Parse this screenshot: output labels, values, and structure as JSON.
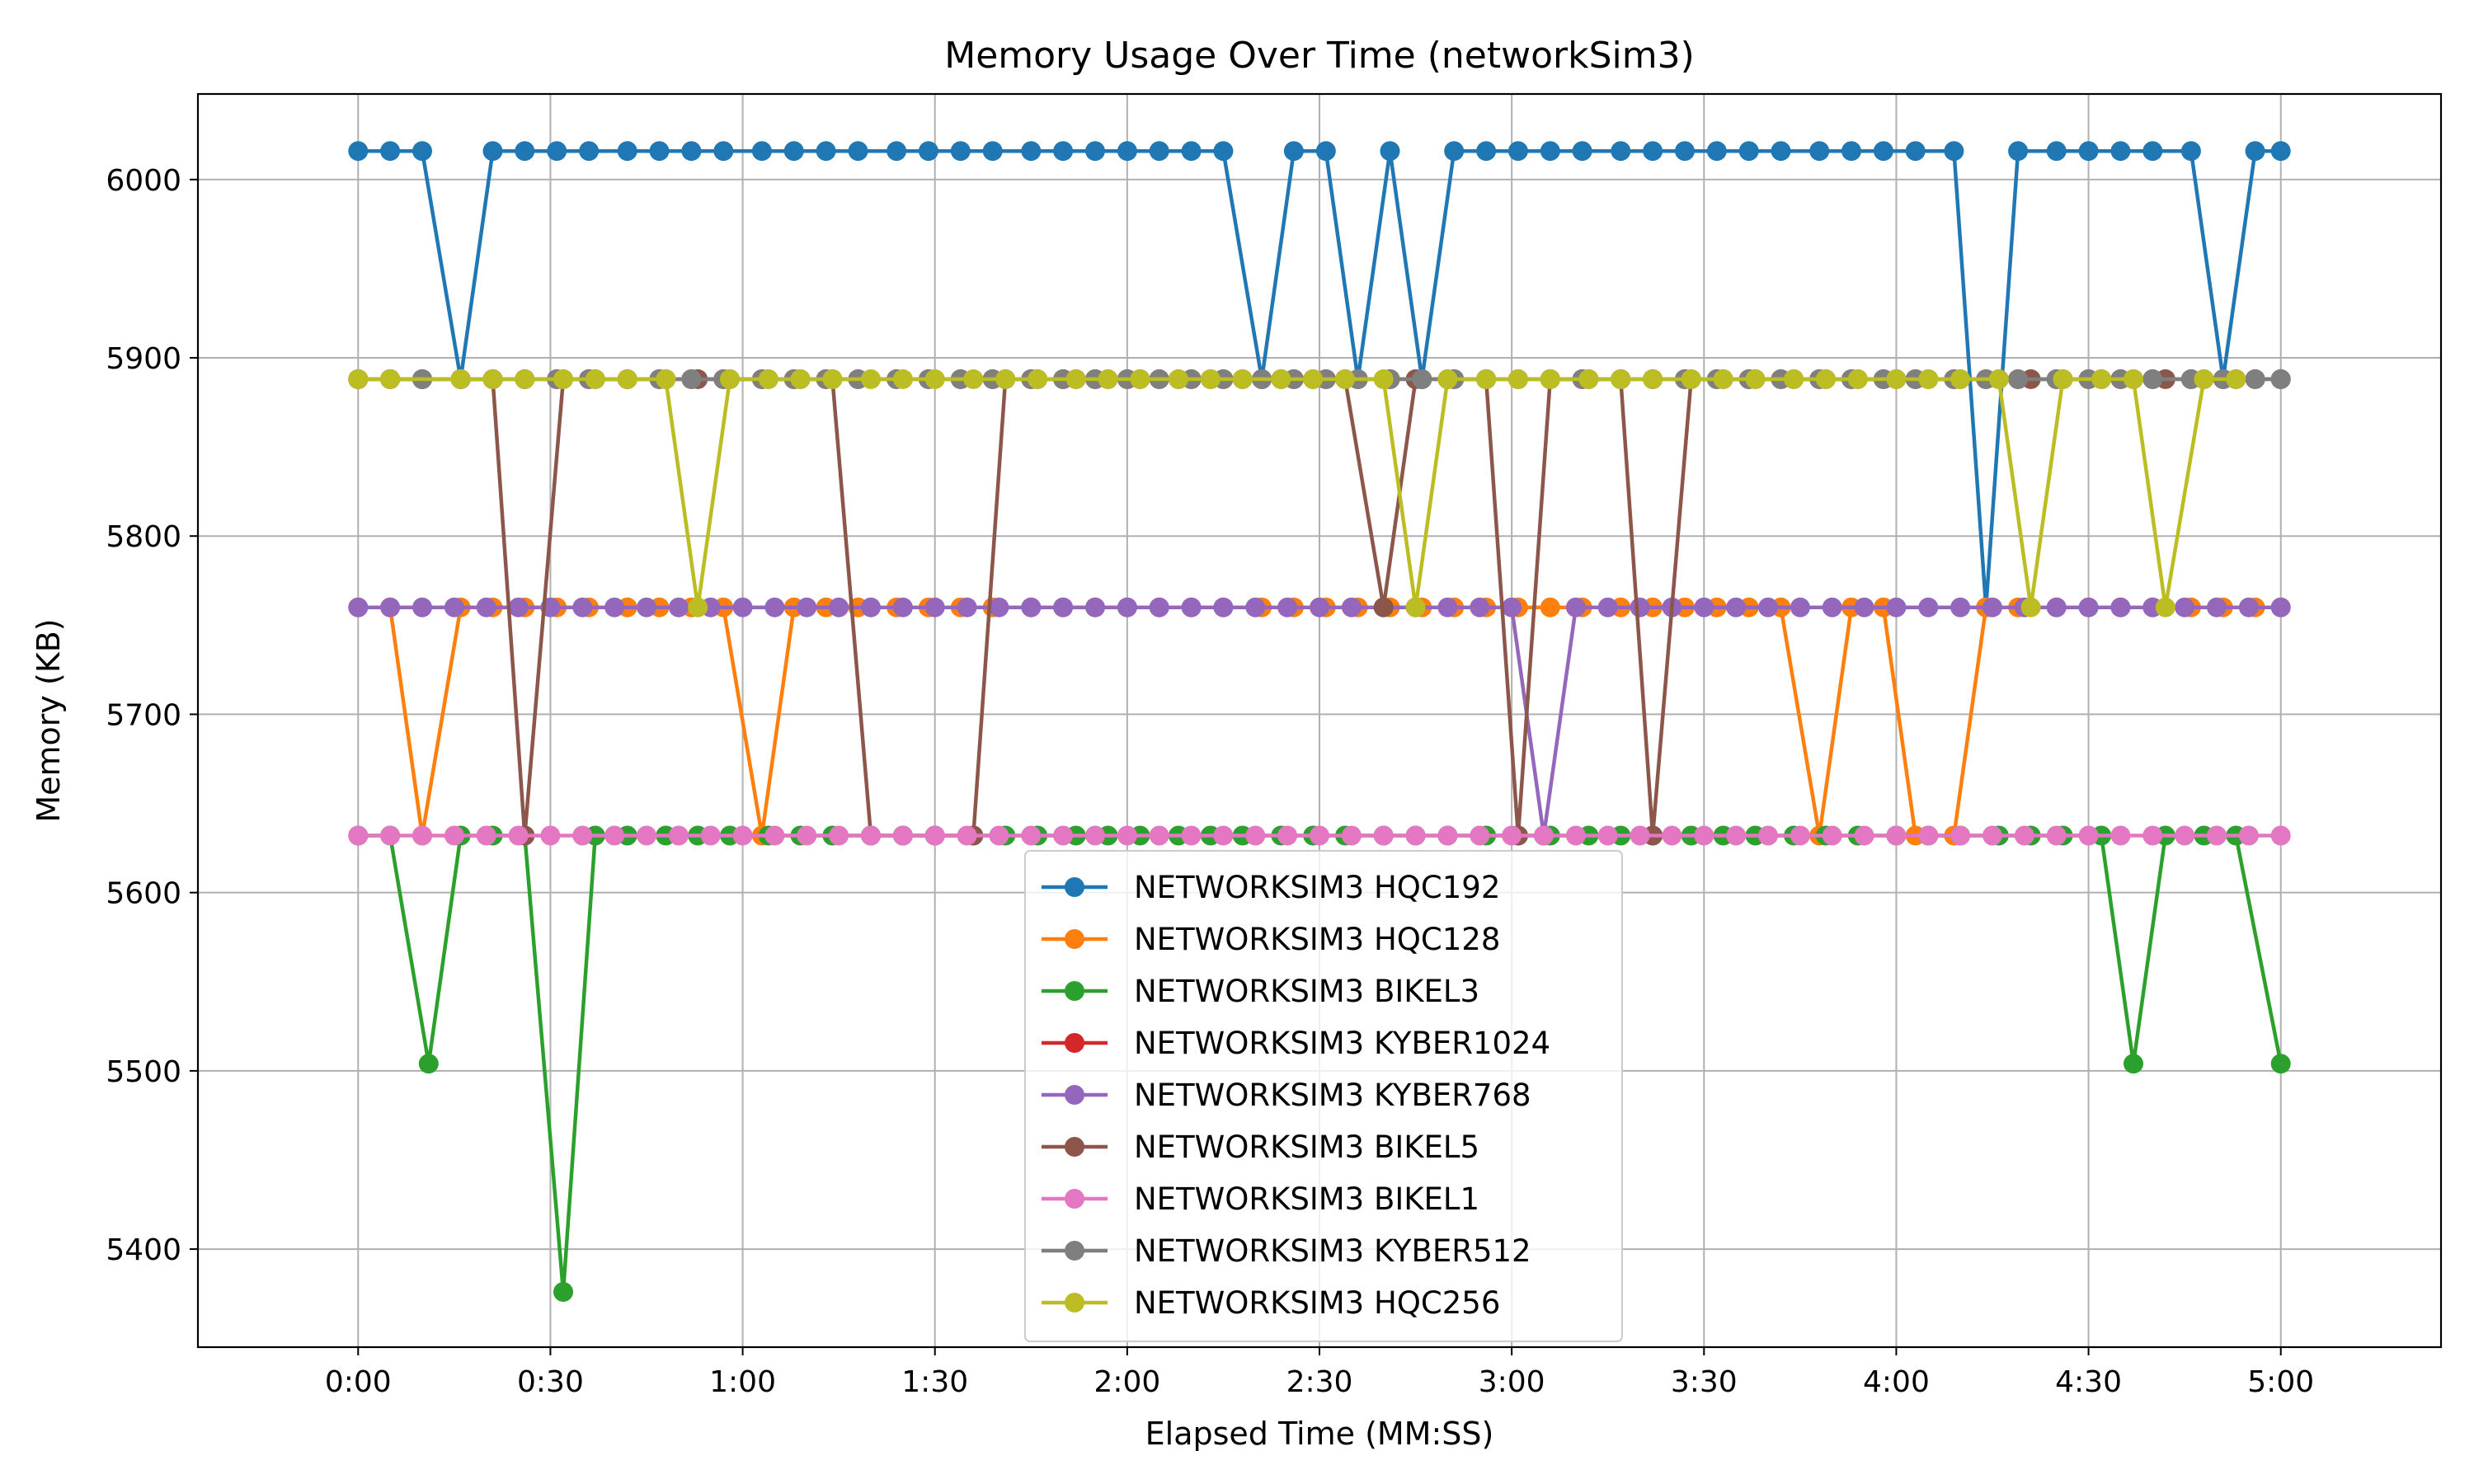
{
  "chart_data": {
    "type": "line",
    "title": "Memory Usage Over Time (networkSim3)",
    "xlabel": "Elapsed Time (MM:SS)",
    "ylabel": "Memory (KB)",
    "xlim": [
      -25,
      325
    ],
    "ylim": [
      5345,
      6048
    ],
    "x_ticks": [
      {
        "value": 0,
        "label": "0:00"
      },
      {
        "value": 30,
        "label": "0:30"
      },
      {
        "value": 60,
        "label": "1:00"
      },
      {
        "value": 90,
        "label": "1:30"
      },
      {
        "value": 120,
        "label": "2:00"
      },
      {
        "value": 150,
        "label": "2:30"
      },
      {
        "value": 180,
        "label": "3:00"
      },
      {
        "value": 210,
        "label": "3:30"
      },
      {
        "value": 240,
        "label": "4:00"
      },
      {
        "value": 270,
        "label": "4:30"
      },
      {
        "value": 300,
        "label": "5:00"
      }
    ],
    "y_ticks": [
      {
        "value": 5400,
        "label": "5400"
      },
      {
        "value": 5500,
        "label": "5500"
      },
      {
        "value": 5600,
        "label": "5600"
      },
      {
        "value": 5700,
        "label": "5700"
      },
      {
        "value": 5800,
        "label": "5800"
      },
      {
        "value": 5900,
        "label": "5900"
      },
      {
        "value": 6000,
        "label": "6000"
      }
    ],
    "grid": true,
    "legend_position": "lower-center",
    "series": [
      {
        "name": "NETWORKSIM3 HQC192",
        "color": "#1f77b4",
        "x": [
          0,
          5,
          10,
          16,
          21,
          26,
          31,
          36,
          42,
          47,
          52,
          57,
          63,
          68,
          73,
          78,
          84,
          89,
          94,
          99,
          105,
          110,
          115,
          120,
          125,
          130,
          135,
          141,
          146,
          151,
          156,
          161,
          166,
          171,
          176,
          181,
          186,
          191,
          197,
          202,
          207,
          212,
          217,
          222,
          228,
          233,
          238,
          243,
          249,
          254,
          259,
          265,
          270,
          275,
          280,
          286,
          291,
          296,
          300
        ],
        "y": [
          6016,
          6016,
          6016,
          5888,
          6016,
          6016,
          6016,
          6016,
          6016,
          6016,
          6016,
          6016,
          6016,
          6016,
          6016,
          6016,
          6016,
          6016,
          6016,
          6016,
          6016,
          6016,
          6016,
          6016,
          6016,
          6016,
          6016,
          5888,
          6016,
          6016,
          5888,
          6016,
          5888,
          6016,
          6016,
          6016,
          6016,
          6016,
          6016,
          6016,
          6016,
          6016,
          6016,
          6016,
          6016,
          6016,
          6016,
          6016,
          6016,
          5760,
          6016,
          6016,
          6016,
          6016,
          6016,
          6016,
          5888,
          6016,
          6016
        ]
      },
      {
        "name": "NETWORKSIM3 HQC128",
        "color": "#ff7f0e",
        "x": [
          0,
          5,
          10,
          16,
          21,
          26,
          31,
          36,
          42,
          47,
          52,
          57,
          63,
          68,
          73,
          78,
          84,
          89,
          94,
          99,
          105,
          110,
          115,
          120,
          125,
          130,
          135,
          141,
          146,
          151,
          156,
          161,
          166,
          171,
          176,
          181,
          186,
          191,
          197,
          202,
          207,
          212,
          217,
          222,
          228,
          233,
          238,
          243,
          249,
          254,
          259,
          265,
          270,
          275,
          280,
          286,
          291,
          296,
          300
        ],
        "y": [
          5760,
          5760,
          5632,
          5760,
          5760,
          5760,
          5760,
          5760,
          5760,
          5760,
          5760,
          5760,
          5632,
          5760,
          5760,
          5760,
          5760,
          5760,
          5760,
          5760,
          5760,
          5760,
          5760,
          5760,
          5760,
          5760,
          5760,
          5760,
          5760,
          5760,
          5760,
          5760,
          5760,
          5760,
          5760,
          5760,
          5760,
          5760,
          5760,
          5760,
          5760,
          5760,
          5760,
          5760,
          5632,
          5760,
          5760,
          5632,
          5632,
          5760,
          5760,
          5760,
          5760,
          5760,
          5760,
          5760,
          5760,
          5760,
          5760
        ]
      },
      {
        "name": "NETWORKSIM3 BIKEL3",
        "color": "#2ca02c",
        "x": [
          0,
          5,
          11,
          16,
          21,
          26,
          32,
          37,
          42,
          48,
          53,
          58,
          64,
          69,
          74,
          80,
          85,
          90,
          96,
          101,
          106,
          112,
          117,
          122,
          128,
          133,
          138,
          144,
          149,
          154,
          160,
          165,
          170,
          176,
          181,
          186,
          192,
          197,
          202,
          208,
          213,
          218,
          224,
          229,
          234,
          240,
          245,
          250,
          256,
          261,
          266,
          272,
          277,
          282,
          288,
          293,
          300
        ],
        "y": [
          5632,
          5632,
          5504,
          5632,
          5632,
          5632,
          5376,
          5632,
          5632,
          5632,
          5632,
          5632,
          5632,
          5632,
          5632,
          5632,
          5632,
          5632,
          5632,
          5632,
          5632,
          5632,
          5632,
          5632,
          5632,
          5632,
          5632,
          5632,
          5632,
          5632,
          5632,
          5632,
          5632,
          5632,
          5632,
          5632,
          5632,
          5632,
          5632,
          5632,
          5632,
          5632,
          5632,
          5632,
          5632,
          5632,
          5632,
          5632,
          5632,
          5632,
          5632,
          5632,
          5504,
          5632,
          5632,
          5632,
          5504
        ]
      },
      {
        "name": "NETWORKSIM3 KYBER1024",
        "color": "#d62728",
        "x": [
          0,
          5,
          10,
          16,
          21,
          26,
          31,
          36,
          42,
          47,
          52,
          57,
          63,
          68,
          73,
          78,
          84,
          89,
          94,
          99,
          105,
          110,
          115,
          120,
          125,
          130,
          135,
          141,
          146,
          151,
          156,
          161,
          166,
          171,
          176,
          181,
          186,
          191,
          197,
          202,
          207,
          212,
          217,
          222,
          228,
          233,
          238,
          243,
          249,
          254,
          259,
          265,
          270,
          275,
          280,
          286,
          291,
          296,
          300
        ],
        "y": [
          5888,
          5888,
          5888,
          5888,
          5888,
          5888,
          5888,
          5888,
          5888,
          5888,
          5888,
          5888,
          5888,
          5888,
          5888,
          5888,
          5888,
          5888,
          5888,
          5888,
          5888,
          5888,
          5888,
          5888,
          5888,
          5888,
          5888,
          5888,
          5888,
          5888,
          5888,
          5888,
          5888,
          5888,
          5888,
          5888,
          5888,
          5888,
          5888,
          5888,
          5888,
          5888,
          5888,
          5888,
          5888,
          5888,
          5888,
          5888,
          5888,
          5888,
          5888,
          5888,
          5888,
          5888,
          5888,
          5888,
          5888,
          5888,
          5888
        ]
      },
      {
        "name": "NETWORKSIM3 KYBER768",
        "color": "#9467bd",
        "x": [
          0,
          5,
          10,
          15,
          20,
          25,
          30,
          35,
          40,
          45,
          50,
          55,
          60,
          65,
          70,
          75,
          80,
          85,
          90,
          95,
          100,
          105,
          110,
          115,
          120,
          125,
          130,
          135,
          140,
          145,
          150,
          155,
          160,
          165,
          170,
          175,
          180,
          185,
          190,
          195,
          200,
          205,
          210,
          215,
          220,
          225,
          230,
          235,
          240,
          245,
          250,
          255,
          260,
          265,
          270,
          275,
          280,
          285,
          290,
          295,
          300
        ],
        "y": [
          5760,
          5760,
          5760,
          5760,
          5760,
          5760,
          5760,
          5760,
          5760,
          5760,
          5760,
          5760,
          5760,
          5760,
          5760,
          5760,
          5760,
          5760,
          5760,
          5760,
          5760,
          5760,
          5760,
          5760,
          5760,
          5760,
          5760,
          5760,
          5760,
          5760,
          5760,
          5760,
          5760,
          5760,
          5760,
          5760,
          5760,
          5632,
          5760,
          5760,
          5760,
          5760,
          5760,
          5760,
          5760,
          5760,
          5760,
          5760,
          5760,
          5760,
          5760,
          5760,
          5760,
          5760,
          5760,
          5760,
          5760,
          5760,
          5760,
          5760,
          5760
        ]
      },
      {
        "name": "NETWORKSIM3 BIKEL5",
        "color": "#8c564b",
        "x": [
          0,
          5,
          10,
          16,
          21,
          26,
          32,
          37,
          42,
          48,
          53,
          58,
          64,
          69,
          74,
          80,
          85,
          90,
          96,
          101,
          106,
          112,
          117,
          122,
          128,
          133,
          138,
          144,
          149,
          154,
          160,
          165,
          170,
          176,
          181,
          186,
          192,
          197,
          202,
          208,
          213,
          218,
          224,
          229,
          234,
          240,
          245,
          250,
          256,
          261,
          266,
          272,
          277,
          282,
          288,
          293,
          300
        ],
        "y": [
          5888,
          5888,
          5888,
          5888,
          5888,
          5632,
          5888,
          5888,
          5888,
          5888,
          5888,
          5888,
          5888,
          5888,
          5888,
          5632,
          5632,
          5632,
          5632,
          5888,
          5888,
          5888,
          5888,
          5888,
          5888,
          5888,
          5888,
          5888,
          5888,
          5888,
          5760,
          5888,
          5888,
          5888,
          5632,
          5888,
          5888,
          5888,
          5632,
          5888,
          5888,
          5888,
          5888,
          5888,
          5888,
          5888,
          5888,
          5888,
          5888,
          5888,
          5888,
          5888,
          5888,
          5888,
          5888,
          5888,
          5888
        ]
      },
      {
        "name": "NETWORKSIM3 BIKEL1",
        "color": "#e377c2",
        "x": [
          0,
          5,
          10,
          15,
          20,
          25,
          30,
          35,
          40,
          45,
          50,
          55,
          60,
          65,
          70,
          75,
          80,
          85,
          90,
          95,
          100,
          105,
          110,
          115,
          120,
          125,
          130,
          135,
          140,
          145,
          150,
          155,
          160,
          165,
          170,
          175,
          180,
          185,
          190,
          195,
          200,
          205,
          210,
          215,
          220,
          225,
          230,
          235,
          240,
          245,
          250,
          255,
          260,
          265,
          270,
          275,
          280,
          285,
          290,
          295,
          300
        ],
        "y": [
          5632,
          5632,
          5632,
          5632,
          5632,
          5632,
          5632,
          5632,
          5632,
          5632,
          5632,
          5632,
          5632,
          5632,
          5632,
          5632,
          5632,
          5632,
          5632,
          5632,
          5632,
          5632,
          5632,
          5632,
          5632,
          5632,
          5632,
          5632,
          5632,
          5632,
          5632,
          5632,
          5632,
          5632,
          5632,
          5632,
          5632,
          5632,
          5632,
          5632,
          5632,
          5632,
          5632,
          5632,
          5632,
          5632,
          5632,
          5632,
          5632,
          5632,
          5632,
          5632,
          5632,
          5632,
          5632,
          5632,
          5632,
          5632,
          5632,
          5632,
          5632
        ]
      },
      {
        "name": "NETWORKSIM3 KYBER512",
        "color": "#7f7f7f",
        "x": [
          0,
          5,
          10,
          16,
          21,
          26,
          31,
          36,
          42,
          47,
          52,
          57,
          63,
          68,
          73,
          78,
          84,
          89,
          94,
          99,
          105,
          110,
          115,
          120,
          125,
          130,
          135,
          141,
          146,
          151,
          156,
          161,
          166,
          171,
          176,
          181,
          186,
          191,
          197,
          202,
          207,
          212,
          217,
          222,
          228,
          233,
          238,
          243,
          249,
          254,
          259,
          265,
          270,
          275,
          280,
          286,
          291,
          296,
          300
        ],
        "y": [
          5888,
          5888,
          5888,
          5888,
          5888,
          5888,
          5888,
          5888,
          5888,
          5888,
          5888,
          5888,
          5888,
          5888,
          5888,
          5888,
          5888,
          5888,
          5888,
          5888,
          5888,
          5888,
          5888,
          5888,
          5888,
          5888,
          5888,
          5888,
          5888,
          5888,
          5888,
          5888,
          5888,
          5888,
          5888,
          5888,
          5888,
          5888,
          5888,
          5888,
          5888,
          5888,
          5888,
          5888,
          5888,
          5888,
          5888,
          5888,
          5888,
          5888,
          5888,
          5888,
          5888,
          5888,
          5888,
          5888,
          5888,
          5888,
          5888
        ]
      },
      {
        "name": "NETWORKSIM3 HQC256",
        "color": "#bcbd22",
        "x": [
          0,
          5,
          16,
          21,
          26,
          32,
          37,
          42,
          48,
          53,
          58,
          64,
          69,
          74,
          80,
          85,
          90,
          96,
          101,
          106,
          112,
          117,
          122,
          128,
          133,
          138,
          144,
          149,
          154,
          160,
          165,
          170,
          176,
          181,
          186,
          192,
          197,
          202,
          208,
          213,
          218,
          224,
          229,
          234,
          240,
          245,
          250,
          256,
          261,
          266,
          272,
          277,
          282,
          288,
          293
        ],
        "y": [
          5888,
          5888,
          5888,
          5888,
          5888,
          5888,
          5888,
          5888,
          5888,
          5760,
          5888,
          5888,
          5888,
          5888,
          5888,
          5888,
          5888,
          5888,
          5888,
          5888,
          5888,
          5888,
          5888,
          5888,
          5888,
          5888,
          5888,
          5888,
          5888,
          5888,
          5760,
          5888,
          5888,
          5888,
          5888,
          5888,
          5888,
          5888,
          5888,
          5888,
          5888,
          5888,
          5888,
          5888,
          5888,
          5888,
          5888,
          5888,
          5760,
          5888,
          5888,
          5888,
          5760,
          5888,
          5888
        ]
      }
    ]
  }
}
